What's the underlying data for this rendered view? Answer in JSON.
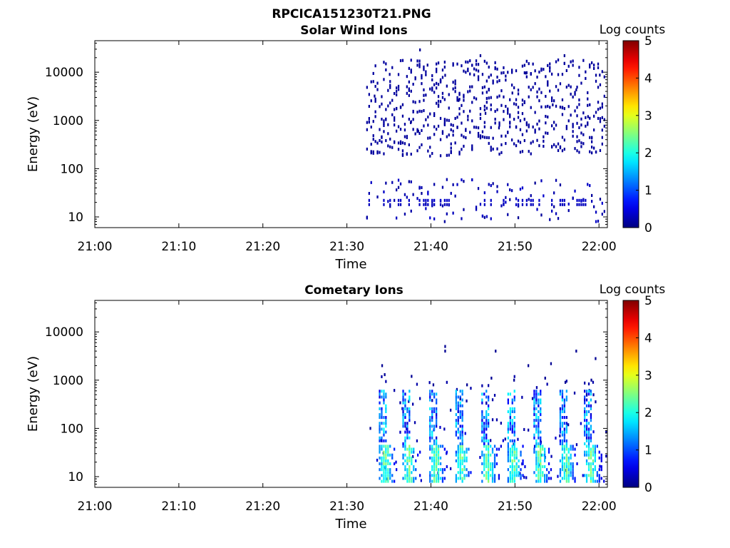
{
  "figure": {
    "filename": "RPCICA151230T21.PNG"
  },
  "chart_data": [
    {
      "type": "heatmap",
      "title": "Solar Wind Ions",
      "xlabel": "Time",
      "ylabel": "Energy (eV)",
      "x_ticks": [
        "21:00",
        "21:10",
        "21:20",
        "21:30",
        "21:40",
        "21:50",
        "22:00"
      ],
      "x_tick_minutes": [
        0,
        10,
        20,
        30,
        40,
        50,
        60
      ],
      "xlim_minutes": [
        0,
        61
      ],
      "y_scale": "log",
      "ylim": [
        6,
        45000
      ],
      "y_ticks": [
        "10",
        "100",
        "1000",
        "10000"
      ],
      "y_tick_values": [
        10,
        100,
        1000,
        10000
      ],
      "colorbar": {
        "label": "Log counts",
        "ticks": [
          "0",
          "1",
          "2",
          "3",
          "4",
          "5"
        ],
        "range": [
          0,
          5
        ],
        "colormap": "jet"
      },
      "data_start_minutes": 32.3,
      "seed": 11,
      "cells": [
        [
          33.2,
          3200,
          0.1
        ],
        [
          35.0,
          9000,
          0.1
        ],
        [
          36.3,
          1900,
          0.1
        ],
        [
          37.5,
          900,
          0.1
        ],
        [
          38.4,
          600,
          0.1
        ],
        [
          39.5,
          14000,
          0.1
        ],
        [
          41.6,
          8600,
          0.1
        ],
        [
          43.2,
          2600,
          0.1
        ],
        [
          44.8,
          5000,
          0.1
        ],
        [
          46.4,
          1400,
          0.1
        ],
        [
          48.0,
          700,
          0.1
        ],
        [
          49.6,
          3700,
          0.1
        ],
        [
          51.2,
          9600,
          0.1
        ],
        [
          52.8,
          300,
          0.1
        ],
        [
          54.4,
          2100,
          0.1
        ],
        [
          55.8,
          22000,
          0.1
        ],
        [
          57.2,
          4300,
          0.1
        ],
        [
          58.6,
          1200,
          0.1
        ],
        [
          60.0,
          8700,
          0.1
        ],
        [
          38.6,
          29000,
          0.1
        ],
        [
          45.8,
          22000,
          0.1
        ]
      ]
    },
    {
      "type": "heatmap",
      "title": "Cometary Ions",
      "xlabel": "Time",
      "ylabel": "Energy (eV)",
      "x_ticks": [
        "21:00",
        "21:10",
        "21:20",
        "21:30",
        "21:40",
        "21:50",
        "22:00"
      ],
      "x_tick_minutes": [
        0,
        10,
        20,
        30,
        40,
        50,
        60
      ],
      "xlim_minutes": [
        0,
        61
      ],
      "y_scale": "log",
      "ylim": [
        6,
        45000
      ],
      "y_ticks": [
        "10",
        "100",
        "1000",
        "10000"
      ],
      "y_tick_values": [
        10,
        100,
        1000,
        10000
      ],
      "colorbar": {
        "label": "Log counts",
        "ticks": [
          "0",
          "1",
          "2",
          "3",
          "4",
          "5"
        ],
        "range": [
          0,
          5
        ],
        "colormap": "jet"
      },
      "data_start_minutes": 33.0,
      "burst_minutes": [
        34.2,
        37.0,
        40.2,
        43.3,
        46.4,
        49.5,
        52.6,
        55.7,
        58.6
      ],
      "seed": 23,
      "cells": [
        [
          41.6,
          5000,
          0.1
        ],
        [
          41.6,
          4000,
          0.1
        ],
        [
          47.6,
          4000,
          0.1
        ],
        [
          57.2,
          4000,
          0.1
        ],
        [
          59.5,
          2800,
          0.1
        ],
        [
          51.5,
          2000,
          0.1
        ],
        [
          54.2,
          2200,
          0.1
        ],
        [
          34.1,
          2000,
          0.1
        ],
        [
          34.4,
          1300,
          0.1
        ],
        [
          37.6,
          1200,
          0.1
        ],
        [
          40.2,
          800,
          0.1
        ],
        [
          44.2,
          800,
          0.1
        ],
        [
          47.1,
          1100,
          0.1
        ],
        [
          49.8,
          1000,
          0.1
        ],
        [
          53.5,
          1100,
          0.1
        ],
        [
          55.9,
          900,
          0.1
        ],
        [
          59.0,
          1000,
          0.1
        ],
        [
          32.7,
          100,
          0.1
        ]
      ]
    }
  ]
}
